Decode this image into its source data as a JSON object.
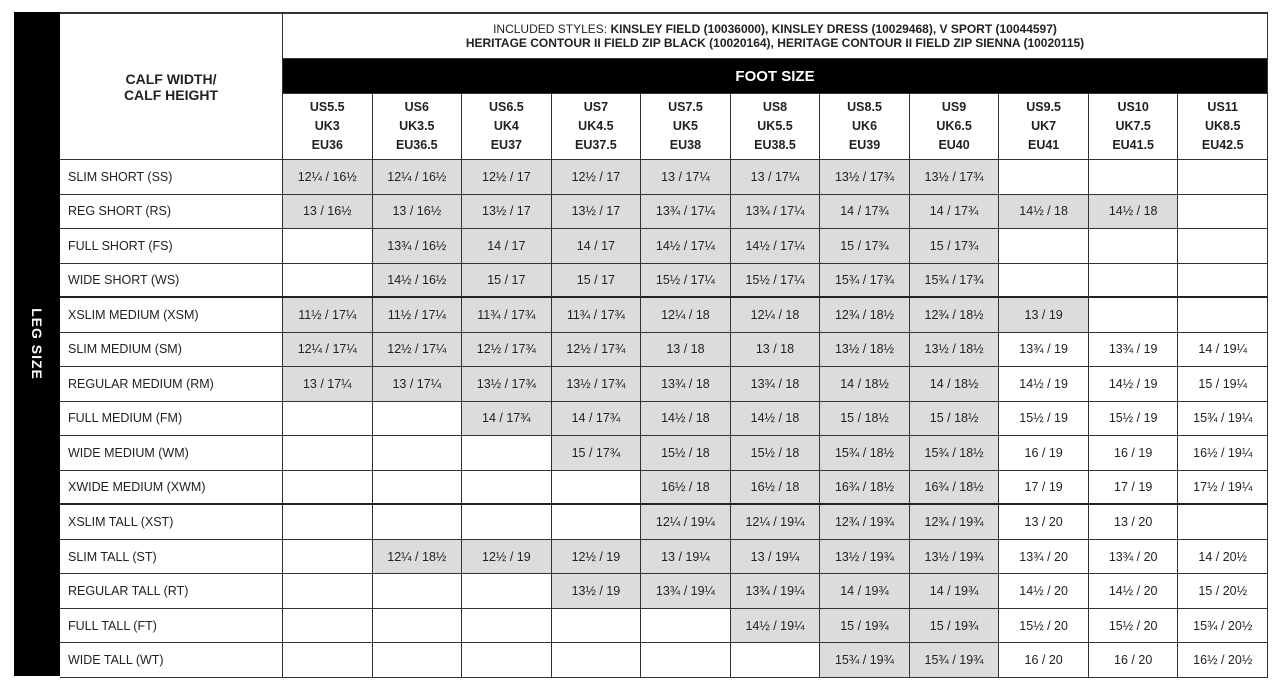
{
  "header": {
    "styles_label": "INCLUDED STYLES:",
    "styles_line1": "KINSLEY FIELD (10036000), KINSLEY DRESS (10029468), V SPORT (10044597)",
    "styles_line2": "HERITAGE CONTOUR II FIELD ZIP BLACK (10020164), HERITAGE CONTOUR II FIELD ZIP SIENNA (10020115)"
  },
  "table": {
    "corner_header": [
      "CALF WIDTH/",
      "CALF HEIGHT"
    ],
    "group_header": "FOOT SIZE",
    "side_label": "LEG SIZE",
    "columns": [
      [
        "US5.5",
        "UK3",
        "EU36"
      ],
      [
        "US6",
        "UK3.5",
        "EU36.5"
      ],
      [
        "US6.5",
        "UK4",
        "EU37"
      ],
      [
        "US7",
        "UK4.5",
        "EU37.5"
      ],
      [
        "US7.5",
        "UK5",
        "EU38"
      ],
      [
        "US8",
        "UK5.5",
        "EU38.5"
      ],
      [
        "US8.5",
        "UK6",
        "EU39"
      ],
      [
        "US9",
        "UK6.5",
        "EU40"
      ],
      [
        "US9.5",
        "UK7",
        "EU41"
      ],
      [
        "US10",
        "UK7.5",
        "EU41.5"
      ],
      [
        "US11",
        "UK8.5",
        "EU42.5"
      ]
    ],
    "rows": [
      {
        "label": "SLIM SHORT (SS)",
        "cells": [
          "12¼ / 16½",
          "12¼ / 16½",
          "12½ / 17",
          "12½ / 17",
          "13 / 17¼",
          "13 / 17¼",
          "13½ / 17¾",
          "13½ / 17¾",
          null,
          null,
          null
        ]
      },
      {
        "label": "REG SHORT (RS)",
        "cells": [
          "13 / 16½",
          "13 / 16½",
          "13½ / 17",
          "13½ / 17",
          "13¾ / 17¼",
          "13¾ / 17¼",
          "14 / 17¾",
          "14 / 17¾",
          "14½ / 18",
          "14½ / 18",
          null
        ]
      },
      {
        "label": "FULL SHORT (FS)",
        "cells": [
          null,
          "13¾ / 16½",
          "14 / 17",
          "14 / 17",
          "14½ / 17¼",
          "14½ / 17¼",
          "15 / 17¾",
          "15 / 17¾",
          null,
          null,
          null
        ]
      },
      {
        "label": "WIDE SHORT (WS)",
        "cells": [
          null,
          "14½ / 16½",
          "15 / 17",
          "15 / 17",
          "15½ / 17¼",
          "15½ / 17¼",
          "15¾ / 17¾",
          "15¾ / 17¾",
          null,
          null,
          null
        ]
      },
      {
        "label": "XSLIM MEDIUM (XSM)",
        "cells": [
          "11½ / 17¼",
          "11½ / 17¼",
          "11¾ / 17¾",
          "11¾ / 17¾",
          "12¼ / 18",
          "12¼ / 18",
          "12¾ / 18½",
          "12¾ / 18½",
          "13 / 19",
          null,
          null
        ]
      },
      {
        "label": "SLIM MEDIUM (SM)",
        "cells": [
          "12¼ / 17¼",
          "12½ / 17¼",
          "12½ / 17¾",
          "12½ / 17¾",
          "13 / 18",
          "13 / 18",
          "13½ / 18½",
          "13½ / 18½",
          "13¾ / 19",
          "13¾ / 19",
          "14 / 19¼"
        ]
      },
      {
        "label": "REGULAR MEDIUM (RM)",
        "cells": [
          "13 / 17¼",
          "13 / 17¼",
          "13½ / 17¾",
          "13½ / 17¾",
          "13¾ / 18",
          "13¾ / 18",
          "14 / 18½",
          "14 / 18½",
          "14½ / 19",
          "14½ / 19",
          "15 / 19¼"
        ]
      },
      {
        "label": "FULL MEDIUM (FM)",
        "cells": [
          null,
          null,
          "14 / 17¾",
          "14 / 17¾",
          "14½ / 18",
          "14½ / 18",
          "15 / 18½",
          "15 / 18½",
          "15½ / 19",
          "15½ / 19",
          "15¾ / 19¼"
        ]
      },
      {
        "label": "WIDE MEDIUM (WM)",
        "cells": [
          null,
          null,
          null,
          "15 / 17¾",
          "15½ / 18",
          "15½ / 18",
          "15¾ / 18½",
          "15¾ / 18½",
          "16 / 19",
          "16 / 19",
          "16½ / 19¼"
        ]
      },
      {
        "label": "XWIDE MEDIUM (XWM)",
        "cells": [
          null,
          null,
          null,
          null,
          "16½ / 18",
          "16½ / 18",
          "16¾ / 18½",
          "16¾ / 18½",
          "17 / 19",
          "17 / 19",
          "17½ / 19¼"
        ]
      },
      {
        "label": "XSLIM TALL (XST)",
        "cells": [
          null,
          null,
          null,
          null,
          "12¼ / 19¼",
          "12¼ / 19¼",
          "12¾ / 19¾",
          "12¾ / 19¾",
          "13 / 20",
          "13 / 20",
          null
        ]
      },
      {
        "label": "SLIM TALL (ST)",
        "cells": [
          null,
          "12¼ / 18½",
          "12½ / 19",
          "12½ / 19",
          "13 / 19¼",
          "13 / 19¼",
          "13½ / 19¾",
          "13½ / 19¾",
          "13¾ / 20",
          "13¾ / 20",
          "14 / 20½"
        ]
      },
      {
        "label": "REGULAR TALL (RT)",
        "cells": [
          null,
          null,
          null,
          "13½ / 19",
          "13¾ / 19¼",
          "13¾ / 19¼",
          "14 / 19¾",
          "14 / 19¾",
          "14½ / 20",
          "14½ / 20",
          "15 / 20½"
        ]
      },
      {
        "label": "FULL TALL (FT)",
        "cells": [
          null,
          null,
          null,
          null,
          null,
          "14½ / 19¼",
          "15 / 19¾",
          "15 / 19¾",
          "15½ / 20",
          "15½ / 20",
          "15¾ / 20½"
        ]
      },
      {
        "label": "WIDE TALL (WT)",
        "cells": [
          null,
          null,
          null,
          null,
          null,
          null,
          "15¾ / 19¾",
          "15¾ / 19¾",
          "16 / 20",
          "16 / 20",
          "16½ / 20½"
        ]
      }
    ]
  }
}
